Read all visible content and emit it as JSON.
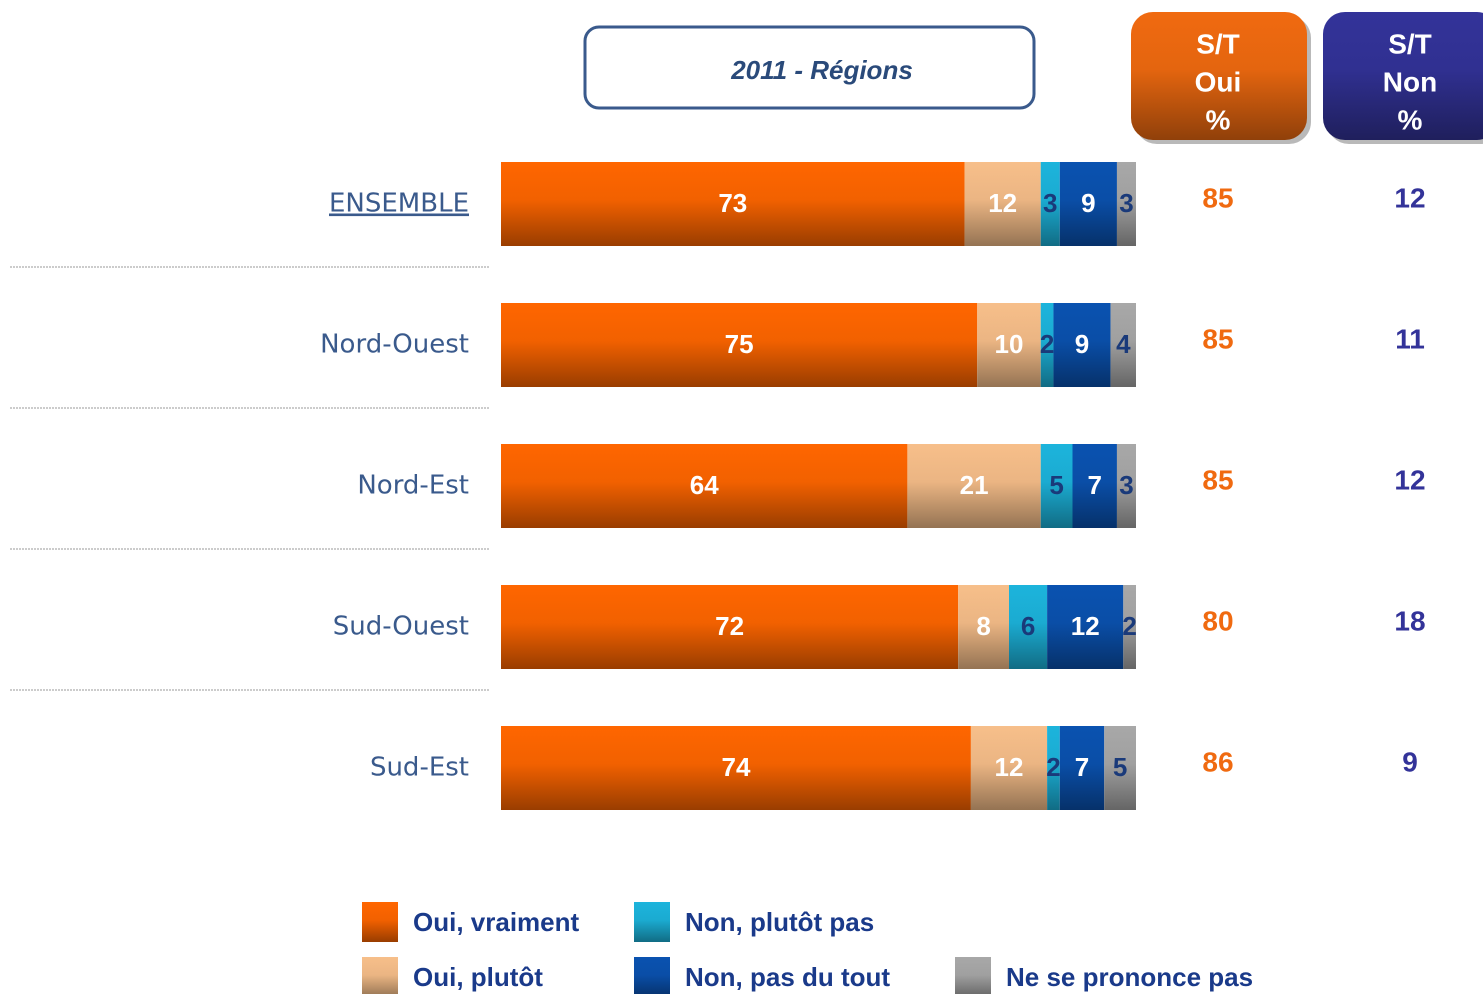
{
  "chart_data": {
    "type": "stacked-bar-horizontal",
    "subtitle": "2011 - Régions",
    "categories": [
      "ENSEMBLE",
      "Nord-Ouest",
      "Nord-Est",
      "Sud-Ouest",
      "Sud-Est"
    ],
    "xlim": [
      0,
      100
    ],
    "series": [
      {
        "name": "Oui, vraiment",
        "color": "#ff6600",
        "values": [
          73,
          75,
          64,
          72,
          74
        ]
      },
      {
        "name": "Oui, plutôt",
        "color": "#f7bf8a",
        "values": [
          12,
          10,
          21,
          8,
          12
        ]
      },
      {
        "name": "Non, plutôt pas",
        "color": "#1cb4dc",
        "values": [
          3,
          2,
          5,
          6,
          2
        ]
      },
      {
        "name": "Non, pas du tout",
        "color": "#0a52b0",
        "values": [
          9,
          9,
          7,
          12,
          7
        ]
      },
      {
        "name": "Ne se prononce pas",
        "color": "#a8a8a8",
        "values": [
          3,
          4,
          3,
          2,
          5
        ]
      }
    ],
    "columns": [
      {
        "header": [
          "S/T",
          "Oui",
          "%"
        ],
        "color": "#f06a10",
        "values": [
          85,
          85,
          85,
          80,
          86
        ]
      },
      {
        "header": [
          "S/T",
          "Non",
          "%"
        ],
        "color": "#333399",
        "values": [
          12,
          11,
          12,
          18,
          9
        ]
      }
    ]
  }
}
